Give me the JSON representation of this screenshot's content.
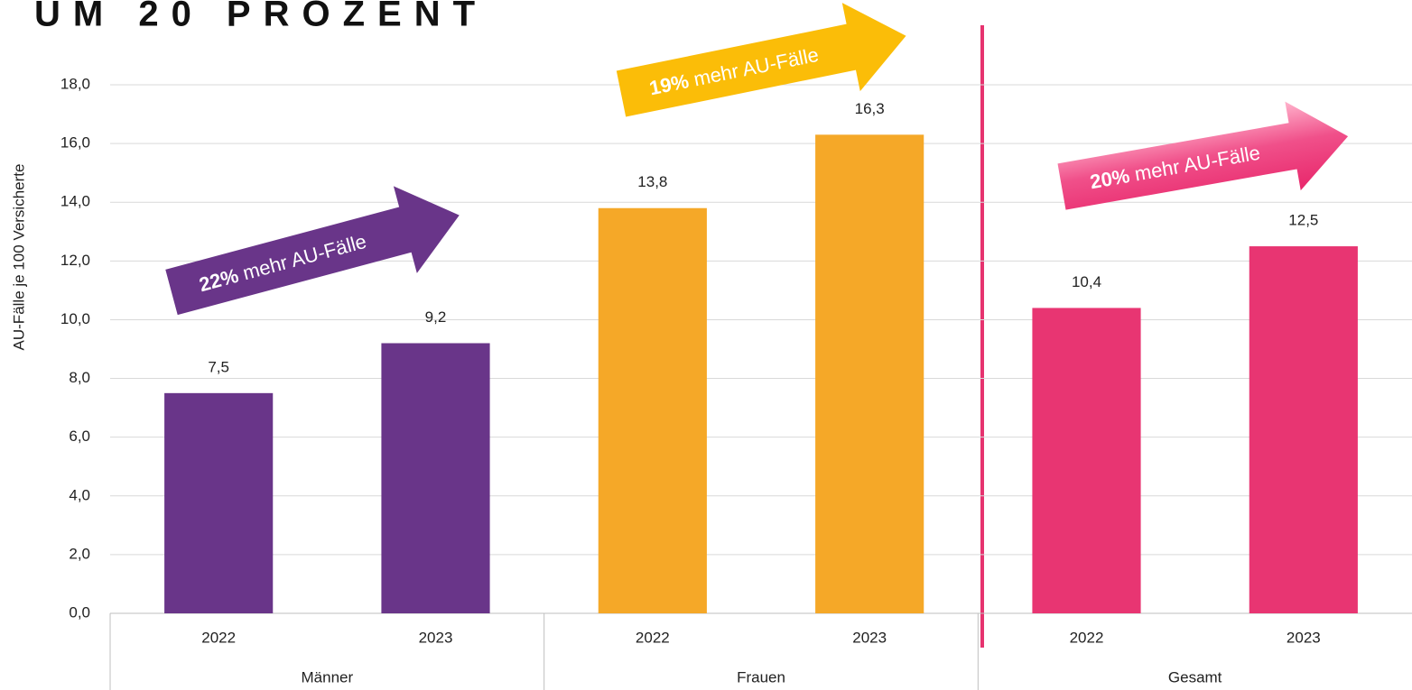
{
  "chart_data": {
    "type": "bar",
    "title": "UM 20 PROZENT",
    "y_label": "AU-Fälle je 100 Versicherte",
    "categories": [
      "2022",
      "2023",
      "2022",
      "2023",
      "2022",
      "2023"
    ],
    "groups": [
      "Männer",
      "Frauen",
      "Gesamt"
    ],
    "values": [
      7.5,
      9.2,
      13.8,
      16.3,
      10.4,
      12.5
    ],
    "value_labels": [
      "7,5",
      "9,2",
      "13,8",
      "16,3",
      "10,4",
      "12,5"
    ],
    "colors": [
      "#693589",
      "#693589",
      "#f5a828",
      "#f5a828",
      "#e83572",
      "#e83572"
    ],
    "ylim": [
      0,
      18
    ],
    "yticks": [
      {
        "value": 0,
        "label": "0,0"
      },
      {
        "value": 2,
        "label": "2,0"
      },
      {
        "value": 4,
        "label": "4,0"
      },
      {
        "value": 6,
        "label": "6,0"
      },
      {
        "value": 8,
        "label": "8,0"
      },
      {
        "value": 10,
        "label": "10,0"
      },
      {
        "value": 12,
        "label": "12,0"
      },
      {
        "value": 14,
        "label": "14,0"
      },
      {
        "value": 16,
        "label": "16,0"
      },
      {
        "value": 18,
        "label": "18,0"
      }
    ],
    "grid": true,
    "annotations": [
      {
        "bold": "22%",
        "text": " mehr AU-Fälle",
        "color": "#693589"
      },
      {
        "bold": "19%",
        "text": " mehr AU-Fälle",
        "color": "#fbbd08"
      },
      {
        "bold": "20%",
        "text": " mehr AU-Fälle",
        "color": "#f0508a"
      }
    ]
  }
}
